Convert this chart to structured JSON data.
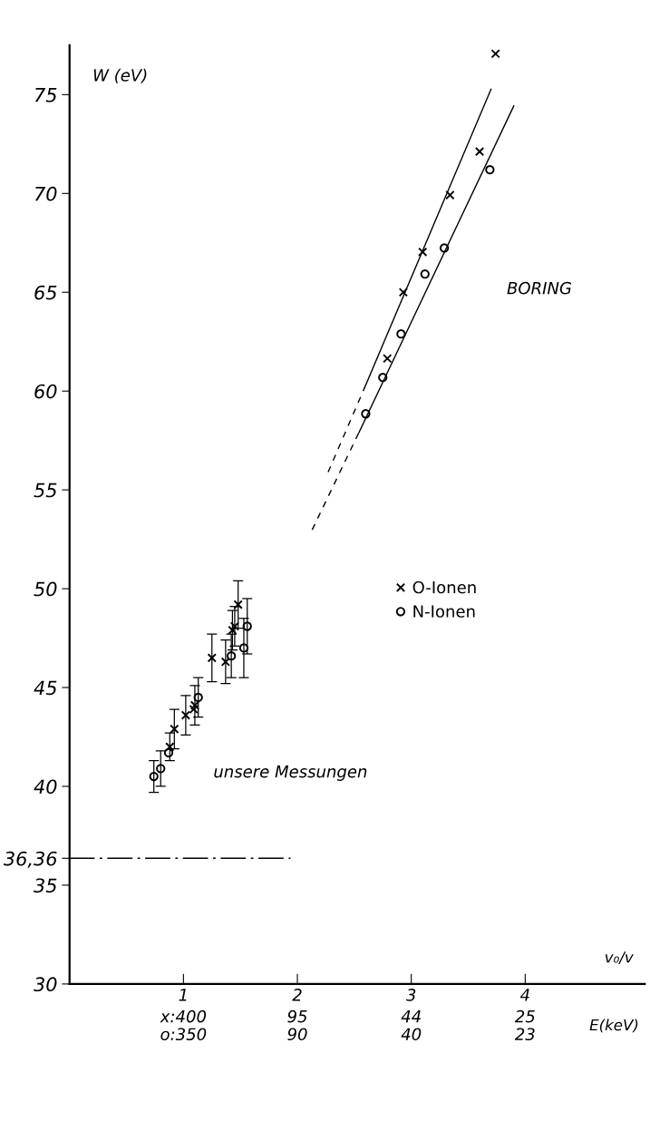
{
  "chart_data": {
    "type": "scatter",
    "xlabel": "v₀/v",
    "ylabel": "W (eV)",
    "xlim": [
      0,
      5.05
    ],
    "ylim": [
      30,
      77.5
    ],
    "xticks": [
      1,
      2,
      3,
      4
    ],
    "yticks": [
      30,
      35,
      {
        "value": 36.36,
        "label": "36,36"
      },
      40,
      45,
      50,
      55,
      60,
      65,
      70,
      75
    ],
    "series": [
      {
        "name": "O-Ionen",
        "marker": "cross",
        "color": "#000000",
        "x": [
          0.88,
          0.92,
          1.02,
          1.09,
          1.1,
          1.25,
          1.37,
          1.43,
          1.45,
          1.48,
          2.79,
          2.93,
          3.1,
          3.34,
          3.6,
          3.74
        ],
        "values": [
          42.0,
          42.9,
          43.6,
          43.9,
          44.1,
          46.5,
          46.3,
          47.9,
          48.1,
          49.2,
          61.65,
          65.0,
          67.04,
          69.92,
          72.12,
          77.07
        ],
        "errors": [
          0.7,
          1.0,
          1.0,
          null,
          1.0,
          1.2,
          1.1,
          1.0,
          1.0,
          1.2,
          null,
          null,
          null,
          null,
          null,
          null
        ]
      },
      {
        "name": "N-Ionen",
        "marker": "circle",
        "color": "#000000",
        "x": [
          0.74,
          0.8,
          0.87,
          1.13,
          1.42,
          1.53,
          1.56,
          2.6,
          2.75,
          2.91,
          3.12,
          3.29,
          3.69
        ],
        "values": [
          40.5,
          40.9,
          41.7,
          44.5,
          46.6,
          47.0,
          48.1,
          58.85,
          60.69,
          62.89,
          65.92,
          67.24,
          71.2
        ],
        "errors": [
          0.8,
          0.9,
          null,
          1.0,
          1.1,
          1.5,
          1.4,
          null,
          null,
          null,
          null,
          null,
          null
        ]
      },
      {
        "type": "line",
        "line_style": "solid",
        "color": "#000000",
        "x": [
          2.59,
          3.7
        ],
        "values": [
          60.17,
          75.27
        ]
      },
      {
        "type": "line",
        "line_style": "dashed",
        "color": "#000000",
        "x": [
          2.27,
          2.59
        ],
        "values": [
          55.9,
          60.17
        ]
      },
      {
        "type": "line",
        "line_style": "solid",
        "color": "#000000",
        "x": [
          2.54,
          3.9
        ],
        "values": [
          57.9,
          74.43
        ]
      },
      {
        "type": "line",
        "line_style": "dashed",
        "color": "#000000",
        "x": [
          2.13,
          2.54
        ],
        "values": [
          52.98,
          57.9
        ]
      },
      {
        "type": "line",
        "line_style": "dashdot",
        "color": "#000000",
        "x": [
          0,
          1.94
        ],
        "values": [
          36.36,
          36.36
        ]
      }
    ],
    "annotations": [
      "BORING",
      "unsere Messungen",
      "E(keV)",
      "x:400",
      "o:350",
      "95",
      "90",
      "44",
      "40",
      "25",
      "23"
    ],
    "legend": "center right",
    "grid": false
  }
}
